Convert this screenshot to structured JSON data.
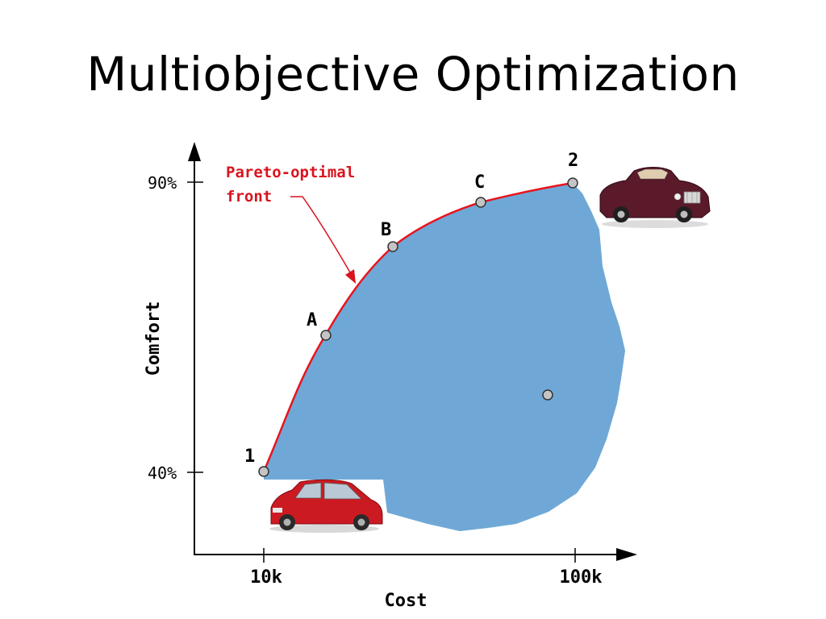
{
  "slide": {
    "title": "Multiobjective Optimization"
  },
  "diagram": {
    "axes": {
      "x_label": "Cost",
      "y_label": "Comfort",
      "x_ticks": [
        "10k",
        "100k"
      ],
      "y_ticks": [
        "90%",
        "40%"
      ]
    },
    "pareto_annotation": {
      "line1": "Pareto-optimal",
      "line2": "front"
    },
    "points": [
      {
        "label": "1"
      },
      {
        "label": "A"
      },
      {
        "label": "B"
      },
      {
        "label": "C"
      },
      {
        "label": "2"
      },
      {
        "label": ""
      }
    ],
    "colors": {
      "region": "#6fa8d6",
      "front": "#e8141e",
      "annotation": "#d8141e",
      "point_fill": "#c4c4c4",
      "axis": "#000000"
    },
    "images": {
      "cheap_car": "red-hatchback-image",
      "luxury_car": "maroon-convertible-image"
    }
  }
}
